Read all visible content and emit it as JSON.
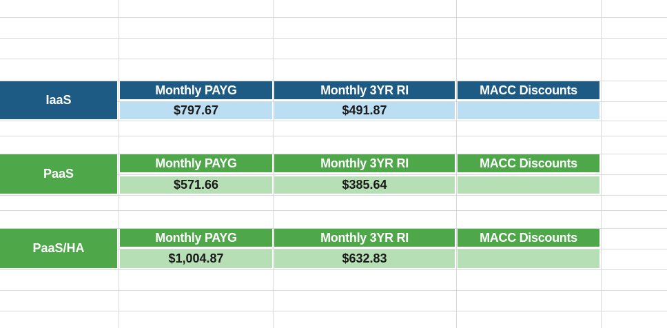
{
  "sections": [
    {
      "label": "IaaS",
      "headers": [
        "Monthly PAYG",
        "Monthly 3YR RI",
        "MACC Discounts"
      ],
      "values": [
        "$797.67",
        "$491.87",
        ""
      ]
    },
    {
      "label": "PaaS",
      "headers": [
        "Monthly PAYG",
        "Monthly 3YR RI",
        "MACC Discounts"
      ],
      "values": [
        "$571.66",
        "$385.64",
        ""
      ]
    },
    {
      "label": "PaaS/HA",
      "headers": [
        "Monthly PAYG",
        "Monthly 3YR RI",
        "MACC Discounts"
      ],
      "values": [
        "$1,004.87",
        "$632.83",
        ""
      ]
    }
  ],
  "colors": {
    "iaas_dark": "#1e5b84",
    "iaas_light": "#bcdef2",
    "paas_dark": "#4ea84a",
    "paas_light": "#b6dfb5"
  }
}
